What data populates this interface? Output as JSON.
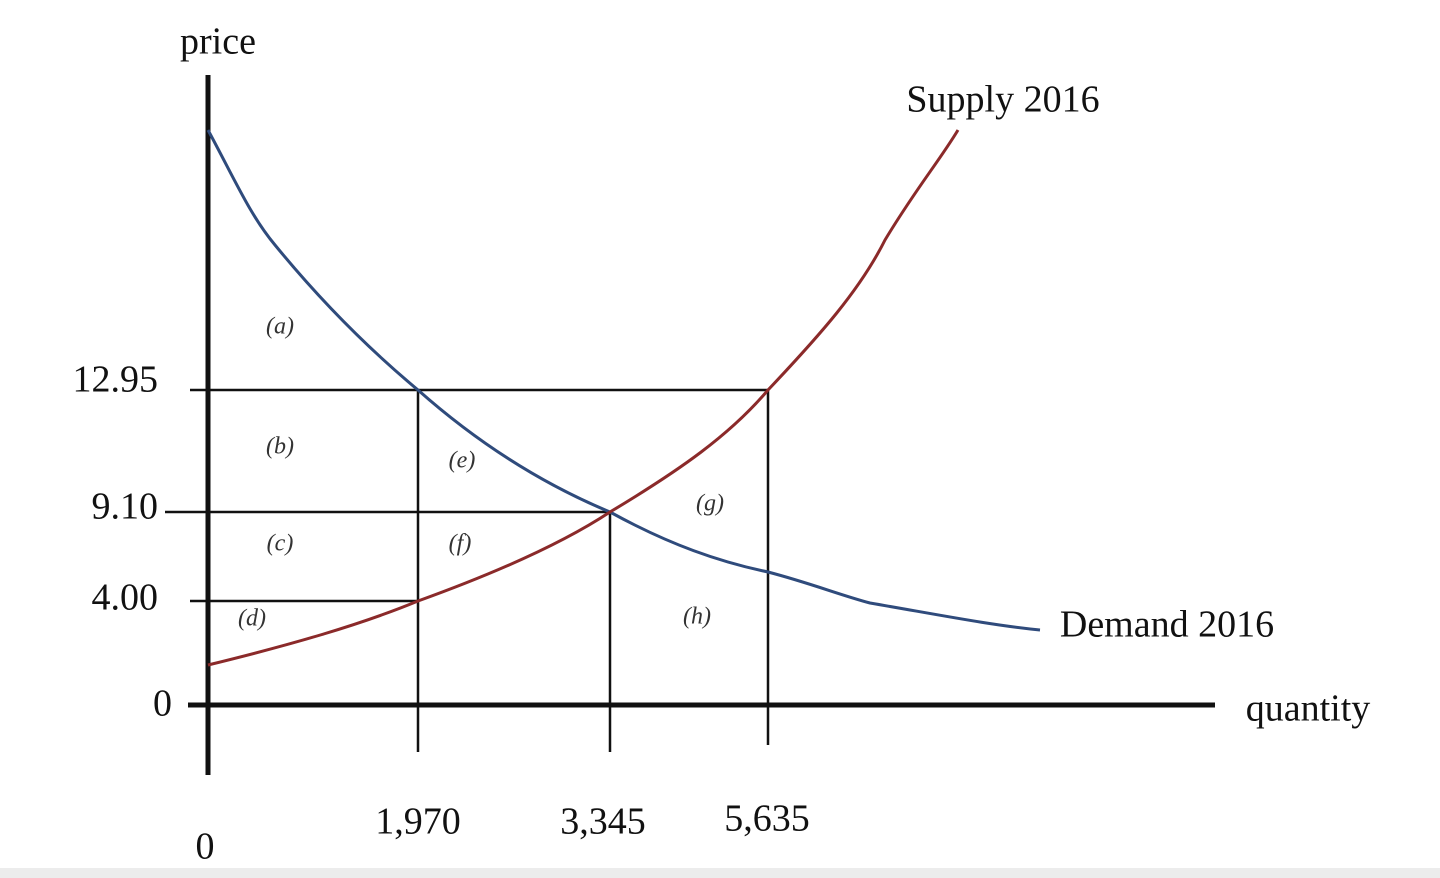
{
  "axes": {
    "y_label": "price",
    "x_label": "quantity",
    "y_ticks": [
      "12.95",
      "9.10",
      "4.00",
      "0"
    ],
    "x_ticks": [
      "0",
      "1,970",
      "3,345",
      "5,635"
    ]
  },
  "curves": {
    "supply": "Supply 2016",
    "demand": "Demand 2016"
  },
  "regions": [
    "(a)",
    "(b)",
    "(c)",
    "(d)",
    "(e)",
    "(f)",
    "(g)",
    "(h)"
  ]
}
